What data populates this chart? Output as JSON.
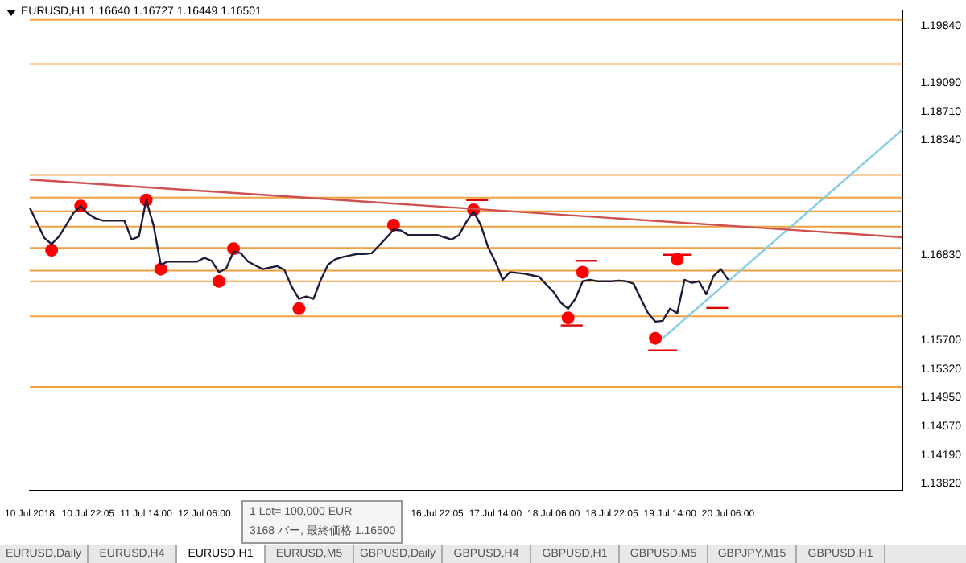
{
  "chart_data": {
    "type": "line",
    "title": "EURUSD,H1 1.16640 1.16727 1.16449 1.16501",
    "categories": [
      "10 Jul 2018",
      null,
      null,
      null,
      null,
      null,
      null,
      null,
      "10 Jul 22:05",
      null,
      null,
      null,
      null,
      null,
      null,
      null,
      "11 Jul 14:00",
      null,
      null,
      null,
      null,
      null,
      null,
      null,
      "12 Jul 06:00",
      null,
      null,
      null,
      null,
      null,
      null,
      null,
      null,
      null,
      null,
      null,
      null,
      null,
      null,
      null,
      null,
      null,
      null,
      null,
      null,
      null,
      null,
      null,
      null,
      null,
      null,
      null,
      null,
      null,
      null,
      null,
      "16 Jul 22:05",
      null,
      null,
      null,
      null,
      null,
      null,
      null,
      "17 Jul 14:00",
      null,
      null,
      null,
      null,
      null,
      null,
      null,
      "18 Jul 06:00",
      null,
      null,
      null,
      null,
      null,
      null,
      null,
      "18 Jul 22:05",
      null,
      null,
      null,
      null,
      null,
      null,
      null,
      "19 Jul 14:00",
      null,
      null,
      null,
      null,
      null,
      null,
      null,
      "20 Jul 06:00",
      null,
      null,
      null,
      null,
      null,
      null,
      null,
      null,
      null,
      null,
      null,
      null,
      null,
      null,
      null,
      null,
      null,
      null,
      null,
      null,
      null,
      null,
      null,
      null
    ],
    "ylim": [
      1.1373,
      1.2003
    ],
    "yticks": [
      {
        "value": 1.1984,
        "label": "1.19840"
      },
      {
        "value": 1.1909,
        "label": "1.19090"
      },
      {
        "value": 1.1871,
        "label": "1.18710"
      },
      {
        "value": 1.1834,
        "label": "1.18340"
      },
      {
        "value": 1.1683,
        "label": "1.16830"
      },
      {
        "value": 1.157,
        "label": "1.15700"
      },
      {
        "value": 1.1532,
        "label": "1.15320"
      },
      {
        "value": 1.1495,
        "label": "1.14950"
      },
      {
        "value": 1.1457,
        "label": "1.14570"
      },
      {
        "value": 1.1419,
        "label": "1.14190"
      },
      {
        "value": 1.1382,
        "label": "1.13820"
      }
    ],
    "grid": false,
    "legend": false,
    "series": [
      {
        "color": "#1c1c3c",
        "marker": "none",
        "line_style": "solid",
        "values": [
          1.1745,
          1.1725,
          1.1705,
          1.1697,
          1.1707,
          1.1722,
          1.1738,
          1.1747,
          1.1737,
          1.1731,
          1.1728,
          1.1728,
          1.1728,
          1.1728,
          1.1703,
          1.1707,
          1.1755,
          1.1722,
          1.167,
          1.1674,
          1.1674,
          1.1674,
          1.1674,
          1.1674,
          1.1679,
          1.1675,
          1.166,
          1.1665,
          1.1687,
          1.1685,
          1.1674,
          1.1669,
          1.1664,
          1.1666,
          1.1668,
          1.1663,
          1.1641,
          1.1625,
          1.1628,
          1.1625,
          1.165,
          1.167,
          1.1677,
          1.168,
          1.1682,
          1.1684,
          1.1684,
          1.1685,
          1.1695,
          1.1705,
          1.1716,
          1.1715,
          1.1709,
          1.1709,
          1.1709,
          1.1709,
          1.1709,
          1.1706,
          1.1703,
          1.1709,
          1.1726,
          1.174,
          1.1722,
          1.1693,
          1.1674,
          1.165,
          1.166,
          1.1659,
          1.1658,
          1.1656,
          1.1654,
          1.1644,
          1.1634,
          1.162,
          1.1612,
          1.1625,
          1.1648,
          1.165,
          1.1648,
          1.1648,
          1.1648,
          1.1649,
          1.1648,
          1.1645,
          1.1625,
          1.1606,
          1.1595,
          1.1596,
          1.1612,
          1.1606,
          1.165,
          1.1646,
          1.1648,
          1.1631,
          1.1655,
          1.1664,
          1.165,
          null,
          null,
          null,
          null,
          null,
          null,
          null,
          null,
          null,
          null,
          null,
          null,
          null,
          null,
          null,
          null,
          null,
          null,
          null,
          null,
          null,
          null,
          null,
          null
        ]
      },
      {
        "type": "line",
        "color": "#d05050",
        "marker": "none",
        "line_style": "solid",
        "values": [
          1.1782,
          null,
          null,
          null,
          null,
          null,
          null,
          null,
          null,
          null,
          null,
          null,
          null,
          null,
          null,
          null,
          null,
          null,
          null,
          null,
          null,
          null,
          null,
          null,
          null,
          null,
          null,
          null,
          null,
          null,
          null,
          null,
          null,
          null,
          null,
          null,
          null,
          null,
          null,
          null,
          null,
          null,
          null,
          null,
          null,
          null,
          null,
          null,
          null,
          null,
          null,
          null,
          null,
          null,
          null,
          null,
          null,
          null,
          null,
          null,
          null,
          null,
          null,
          null,
          null,
          null,
          null,
          null,
          null,
          null,
          null,
          null,
          null,
          null,
          null,
          null,
          null,
          null,
          null,
          null,
          null,
          null,
          null,
          null,
          null,
          null,
          null,
          null,
          null,
          null,
          null,
          null,
          null,
          null,
          null,
          null,
          null,
          null,
          null,
          null,
          null,
          null,
          null,
          null,
          null,
          null,
          null,
          null,
          null,
          null,
          null,
          null,
          null,
          null,
          null,
          null,
          null,
          null,
          null,
          null,
          1.1706
        ]
      },
      {
        "type": "line",
        "color": "#80cce8",
        "marker": "none",
        "line_style": "solid",
        "values": [
          null,
          null,
          null,
          null,
          null,
          null,
          null,
          null,
          null,
          null,
          null,
          null,
          null,
          null,
          null,
          null,
          null,
          null,
          null,
          null,
          null,
          null,
          null,
          null,
          null,
          null,
          null,
          null,
          null,
          null,
          null,
          null,
          null,
          null,
          null,
          null,
          null,
          null,
          null,
          null,
          null,
          null,
          null,
          null,
          null,
          null,
          null,
          null,
          null,
          null,
          null,
          null,
          null,
          null,
          null,
          null,
          null,
          null,
          null,
          null,
          null,
          null,
          null,
          null,
          null,
          null,
          null,
          null,
          null,
          null,
          null,
          null,
          null,
          null,
          null,
          null,
          null,
          null,
          null,
          null,
          null,
          null,
          null,
          null,
          null,
          null,
          null,
          1.1573,
          null,
          null,
          null,
          null,
          null,
          null,
          null,
          null,
          null,
          null,
          null,
          null,
          null,
          null,
          null,
          null,
          null,
          null,
          null,
          null,
          null,
          null,
          null,
          null,
          null,
          null,
          null,
          null,
          null,
          null,
          null,
          null,
          1.1848
        ]
      },
      {
        "type": "scatter",
        "color": "#ff0000",
        "marker": "circle",
        "values": [
          null,
          null,
          null,
          1.1689,
          null,
          null,
          null,
          1.1747,
          null,
          null,
          null,
          null,
          null,
          null,
          null,
          null,
          1.1755,
          null,
          1.1664,
          null,
          null,
          null,
          null,
          null,
          null,
          null,
          1.1648,
          null,
          1.1691,
          null,
          null,
          null,
          null,
          null,
          null,
          null,
          null,
          1.1612,
          null,
          null,
          null,
          null,
          null,
          null,
          null,
          null,
          null,
          null,
          null,
          null,
          1.1722,
          null,
          null,
          null,
          null,
          null,
          null,
          null,
          null,
          null,
          null,
          1.1742,
          null,
          null,
          null,
          null,
          null,
          null,
          null,
          null,
          null,
          null,
          null,
          null,
          1.16,
          null,
          1.166,
          null,
          null,
          null,
          null,
          null,
          null,
          null,
          null,
          null,
          1.1573,
          null,
          null,
          1.1677,
          null,
          null,
          null,
          null,
          null,
          null,
          null,
          null,
          null,
          null,
          null,
          null,
          null,
          null,
          null,
          null,
          null,
          null,
          null,
          null,
          null,
          null,
          null,
          null,
          null,
          null,
          null,
          null,
          null,
          null,
          null
        ]
      },
      {
        "type": "line",
        "color": "#e00000",
        "marker": "none",
        "line_style": "solid",
        "values": [
          null,
          null,
          null,
          null,
          null,
          null,
          null,
          null,
          null,
          null,
          null,
          null,
          null,
          null,
          null,
          null,
          null,
          null,
          null,
          null,
          null,
          null,
          null,
          null,
          null,
          null,
          null,
          null,
          null,
          null,
          null,
          null,
          null,
          null,
          null,
          null,
          null,
          null,
          null,
          null,
          null,
          null,
          null,
          null,
          null,
          null,
          null,
          null,
          null,
          null,
          null,
          null,
          null,
          null,
          null,
          null,
          null,
          null,
          null,
          null,
          1.1755,
          null,
          null,
          1.1755,
          null,
          null,
          null,
          null,
          null,
          null,
          null,
          null,
          null,
          null,
          null,
          null,
          null,
          null,
          null,
          null,
          null,
          null,
          null,
          null,
          null,
          null,
          null,
          null,
          null,
          null,
          null,
          null,
          null,
          null,
          null,
          null,
          null,
          null,
          null,
          null,
          null,
          null,
          null,
          null,
          null,
          null,
          null,
          null,
          null,
          null,
          null,
          null,
          null,
          null,
          null,
          null,
          null,
          null,
          null,
          null,
          null
        ]
      },
      {
        "type": "line",
        "color": "#e00000",
        "marker": "none",
        "line_style": "solid",
        "values": [
          null,
          null,
          null,
          null,
          null,
          null,
          null,
          null,
          null,
          null,
          null,
          null,
          null,
          null,
          null,
          null,
          null,
          null,
          null,
          null,
          null,
          null,
          null,
          null,
          null,
          null,
          null,
          null,
          null,
          null,
          null,
          null,
          null,
          null,
          null,
          null,
          null,
          null,
          null,
          null,
          null,
          null,
          null,
          null,
          null,
          null,
          null,
          null,
          null,
          null,
          null,
          null,
          null,
          null,
          null,
          null,
          null,
          null,
          null,
          null,
          null,
          null,
          null,
          null,
          null,
          null,
          null,
          null,
          null,
          null,
          null,
          null,
          null,
          null,
          null,
          1.1675,
          null,
          null,
          1.1675,
          null,
          null,
          null,
          null,
          null,
          null,
          null,
          null,
          null,
          null,
          null,
          null,
          null,
          null,
          null,
          null,
          null,
          null,
          null,
          null,
          null,
          null,
          null,
          null,
          null,
          null,
          null,
          null,
          null,
          null,
          null,
          null,
          null,
          null,
          null,
          null,
          null,
          null,
          null,
          null,
          null,
          null
        ]
      },
      {
        "type": "line",
        "color": "#e00000",
        "marker": "none",
        "line_style": "solid",
        "values": [
          null,
          null,
          null,
          null,
          null,
          null,
          null,
          null,
          null,
          null,
          null,
          null,
          null,
          null,
          null,
          null,
          null,
          null,
          null,
          null,
          null,
          null,
          null,
          null,
          null,
          null,
          null,
          null,
          null,
          null,
          null,
          null,
          null,
          null,
          null,
          null,
          null,
          null,
          null,
          null,
          null,
          null,
          null,
          null,
          null,
          null,
          null,
          null,
          null,
          null,
          null,
          null,
          null,
          null,
          null,
          null,
          null,
          null,
          null,
          null,
          null,
          null,
          null,
          null,
          null,
          null,
          null,
          null,
          null,
          null,
          null,
          null,
          null,
          1.159,
          null,
          null,
          1.159,
          null,
          null,
          null,
          null,
          null,
          null,
          null,
          null,
          null,
          null,
          null,
          null,
          null,
          null,
          null,
          null,
          null,
          null,
          null,
          null,
          null,
          null,
          null,
          null,
          null,
          null,
          null,
          null,
          null,
          null,
          null,
          null,
          null,
          null,
          null,
          null,
          null,
          null,
          null,
          null,
          null,
          null,
          null,
          null
        ]
      },
      {
        "type": "line",
        "color": "#e00000",
        "marker": "none",
        "line_style": "solid",
        "values": [
          null,
          null,
          null,
          null,
          null,
          null,
          null,
          null,
          null,
          null,
          null,
          null,
          null,
          null,
          null,
          null,
          null,
          null,
          null,
          null,
          null,
          null,
          null,
          null,
          null,
          null,
          null,
          null,
          null,
          null,
          null,
          null,
          null,
          null,
          null,
          null,
          null,
          null,
          null,
          null,
          null,
          null,
          null,
          null,
          null,
          null,
          null,
          null,
          null,
          null,
          null,
          null,
          null,
          null,
          null,
          null,
          null,
          null,
          null,
          null,
          null,
          null,
          null,
          null,
          null,
          null,
          null,
          null,
          null,
          null,
          null,
          null,
          null,
          null,
          null,
          null,
          null,
          null,
          null,
          null,
          null,
          null,
          null,
          null,
          null,
          null,
          null,
          1.1683,
          null,
          null,
          null,
          1.1683,
          null,
          null,
          null,
          null,
          null,
          null,
          null,
          null,
          null,
          null,
          null,
          null,
          null,
          null,
          null,
          null,
          null,
          null,
          null,
          null,
          null,
          null,
          null,
          null,
          null,
          null,
          null,
          null,
          null
        ]
      },
      {
        "type": "line",
        "color": "#e00000",
        "marker": "none",
        "line_style": "solid",
        "values": [
          null,
          null,
          null,
          null,
          null,
          null,
          null,
          null,
          null,
          null,
          null,
          null,
          null,
          null,
          null,
          null,
          null,
          null,
          null,
          null,
          null,
          null,
          null,
          null,
          null,
          null,
          null,
          null,
          null,
          null,
          null,
          null,
          null,
          null,
          null,
          null,
          null,
          null,
          null,
          null,
          null,
          null,
          null,
          null,
          null,
          null,
          null,
          null,
          null,
          null,
          null,
          null,
          null,
          null,
          null,
          null,
          null,
          null,
          null,
          null,
          null,
          null,
          null,
          null,
          null,
          null,
          null,
          null,
          null,
          null,
          null,
          null,
          null,
          null,
          null,
          null,
          null,
          null,
          null,
          null,
          null,
          null,
          null,
          null,
          null,
          null,
          null,
          null,
          null,
          null,
          null,
          null,
          null,
          1.1613,
          null,
          null,
          1.1613,
          null,
          null,
          null,
          null,
          null,
          null,
          null,
          null,
          null,
          null,
          null,
          null,
          null,
          null,
          null,
          null,
          null,
          null,
          null,
          null,
          null,
          null,
          null,
          null
        ]
      },
      {
        "type": "line",
        "color": "#e00000",
        "marker": "none",
        "line_style": "solid",
        "values": [
          null,
          null,
          null,
          null,
          null,
          null,
          null,
          null,
          null,
          null,
          null,
          null,
          null,
          null,
          null,
          null,
          null,
          null,
          null,
          null,
          null,
          null,
          null,
          null,
          null,
          null,
          null,
          null,
          null,
          null,
          null,
          null,
          null,
          null,
          null,
          null,
          null,
          null,
          null,
          null,
          null,
          null,
          null,
          null,
          null,
          null,
          null,
          null,
          null,
          null,
          null,
          null,
          null,
          null,
          null,
          null,
          null,
          null,
          null,
          null,
          null,
          null,
          null,
          null,
          null,
          null,
          null,
          null,
          null,
          null,
          null,
          null,
          null,
          null,
          null,
          null,
          null,
          null,
          null,
          null,
          null,
          null,
          null,
          null,
          null,
          1.1557,
          null,
          null,
          null,
          1.1557,
          null,
          null,
          null,
          null,
          null,
          null,
          null,
          null,
          null,
          null,
          null,
          null,
          null,
          null,
          null,
          null,
          null,
          null,
          null,
          null,
          null,
          null,
          null,
          null,
          null,
          null,
          null,
          null,
          null,
          null,
          null
        ]
      }
    ],
    "ref_lines": [
      {
        "axis": "y",
        "value": 1.1992,
        "color": "#f0a040",
        "line_style": "solid"
      },
      {
        "axis": "y",
        "value": 1.1934,
        "color": "#f0a040",
        "line_style": "solid"
      },
      {
        "axis": "y",
        "value": 1.1788,
        "color": "#f0a040",
        "line_style": "solid"
      },
      {
        "axis": "y",
        "value": 1.1758,
        "color": "#f0a040",
        "line_style": "solid"
      },
      {
        "axis": "y",
        "value": 1.174,
        "color": "#f0a040",
        "line_style": "solid"
      },
      {
        "axis": "y",
        "value": 1.172,
        "color": "#f0a040",
        "line_style": "solid"
      },
      {
        "axis": "y",
        "value": 1.1692,
        "color": "#f0a040",
        "line_style": "solid"
      },
      {
        "axis": "y",
        "value": 1.1662,
        "color": "#f0a040",
        "line_style": "solid"
      },
      {
        "axis": "y",
        "value": 1.1648,
        "color": "#f0a040",
        "line_style": "solid"
      },
      {
        "axis": "y",
        "value": 1.1602,
        "color": "#f0a040",
        "line_style": "solid"
      },
      {
        "axis": "y",
        "value": 1.1509,
        "color": "#f0a040",
        "line_style": "solid"
      }
    ],
    "annotations": [
      "1 Lot= 100,000 EUR",
      "3168 バー, 最終価格 1.16500",
      "EURUSD,Daily",
      "EURUSD,H4",
      "EURUSD,H1",
      "EURUSD,M5",
      "GBPUSD,Daily",
      "GBPUSD,H4",
      "GBPUSD,H1",
      "GBPUSD,M5",
      "GBPJPY,M15",
      "GBPUSD,H1"
    ]
  }
}
